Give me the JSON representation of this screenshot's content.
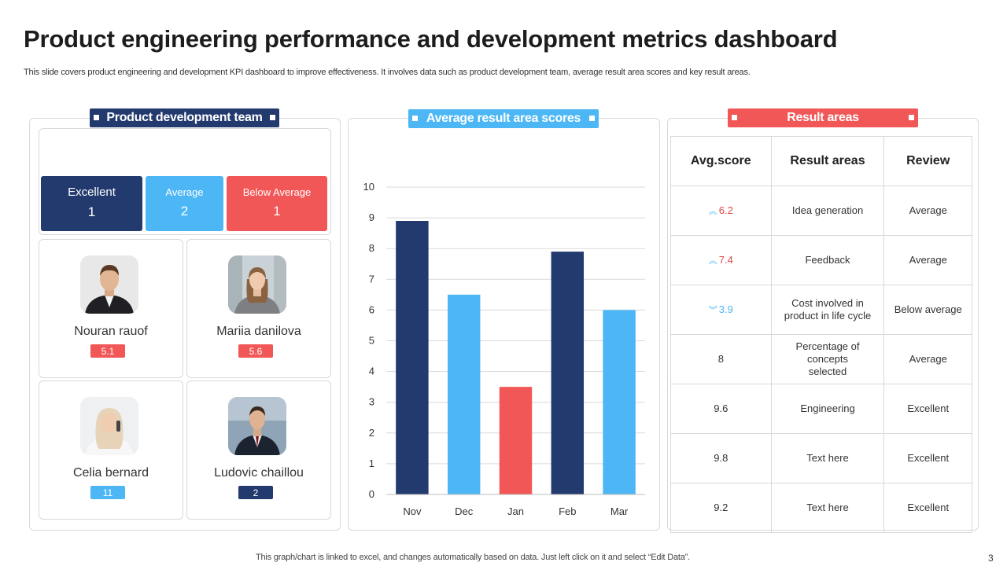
{
  "header": {
    "title": "Product engineering performance and development metrics dashboard",
    "subtitle": "This slide covers product engineering and development KPI dashboard to improve effectiveness. It involves data such as product development team, average result area scores and key result areas."
  },
  "team_panel": {
    "tag": "Product development team",
    "stats": [
      {
        "label": "Excellent",
        "value": "1",
        "color": "#233a6e"
      },
      {
        "label": "Average",
        "value": "2",
        "color": "#4db7f6"
      },
      {
        "label": "Below Average",
        "value": "1",
        "color": "#f25757"
      }
    ],
    "members": [
      {
        "name": "Nouran rauof",
        "score": "5.1",
        "score_color": "#f25757"
      },
      {
        "name": "Mariia danilova",
        "score": "5.6",
        "score_color": "#f25757"
      },
      {
        "name": "Celia bernard",
        "score": "11",
        "score_color": "#4db7f6"
      },
      {
        "name": "Ludovic chaillou",
        "score": "2",
        "score_color": "#233a6e"
      }
    ]
  },
  "chart_panel": {
    "tag": "Average result area scores"
  },
  "chart_data": {
    "type": "bar",
    "title": "Average result area scores",
    "categories": [
      "Nov",
      "Dec",
      "Jan",
      "Feb",
      "Mar"
    ],
    "values": [
      8.9,
      6.5,
      3.5,
      7.9,
      6.0
    ],
    "colors": [
      "#233a6e",
      "#4db7f6",
      "#f25757",
      "#233a6e",
      "#4db7f6"
    ],
    "ylim": [
      0,
      10
    ],
    "yticks": [
      0,
      1,
      2,
      3,
      4,
      5,
      6,
      7,
      8,
      9,
      10
    ],
    "grid": true,
    "xlabel": "",
    "ylabel": ""
  },
  "result_panel": {
    "tag": "Result areas",
    "columns": [
      "Avg.score",
      "Result areas",
      "Review"
    ],
    "rows": [
      {
        "score": "6.2",
        "trend": "up",
        "area": "Idea generation",
        "review": "Average"
      },
      {
        "score": "7.4",
        "trend": "up",
        "area": "Feedback",
        "review": "Average"
      },
      {
        "score": "3.9",
        "trend": "down",
        "area": "Cost involved  in product in life cycle",
        "review": "Below average"
      },
      {
        "score": "8",
        "trend": "",
        "area": "Percentage of concepts selected",
        "review": "Average"
      },
      {
        "score": "9.6",
        "trend": "",
        "area": "Engineering",
        "review": "Excellent"
      },
      {
        "score": "9.8",
        "trend": "",
        "area": "Text here",
        "review": "Excellent"
      },
      {
        "score": "9.2",
        "trend": "",
        "area": "Text here",
        "review": "Excellent"
      }
    ]
  },
  "footer": {
    "note": "This graph/chart is linked to excel,  and changes automatically based on data. Just left click on it and select “Edit Data”.",
    "page": "3"
  },
  "colors": {
    "navy": "#233a6e",
    "sky": "#4db7f6",
    "red": "#f25757",
    "score_up": "#4db7f6",
    "score_text_red": "#e04848"
  }
}
